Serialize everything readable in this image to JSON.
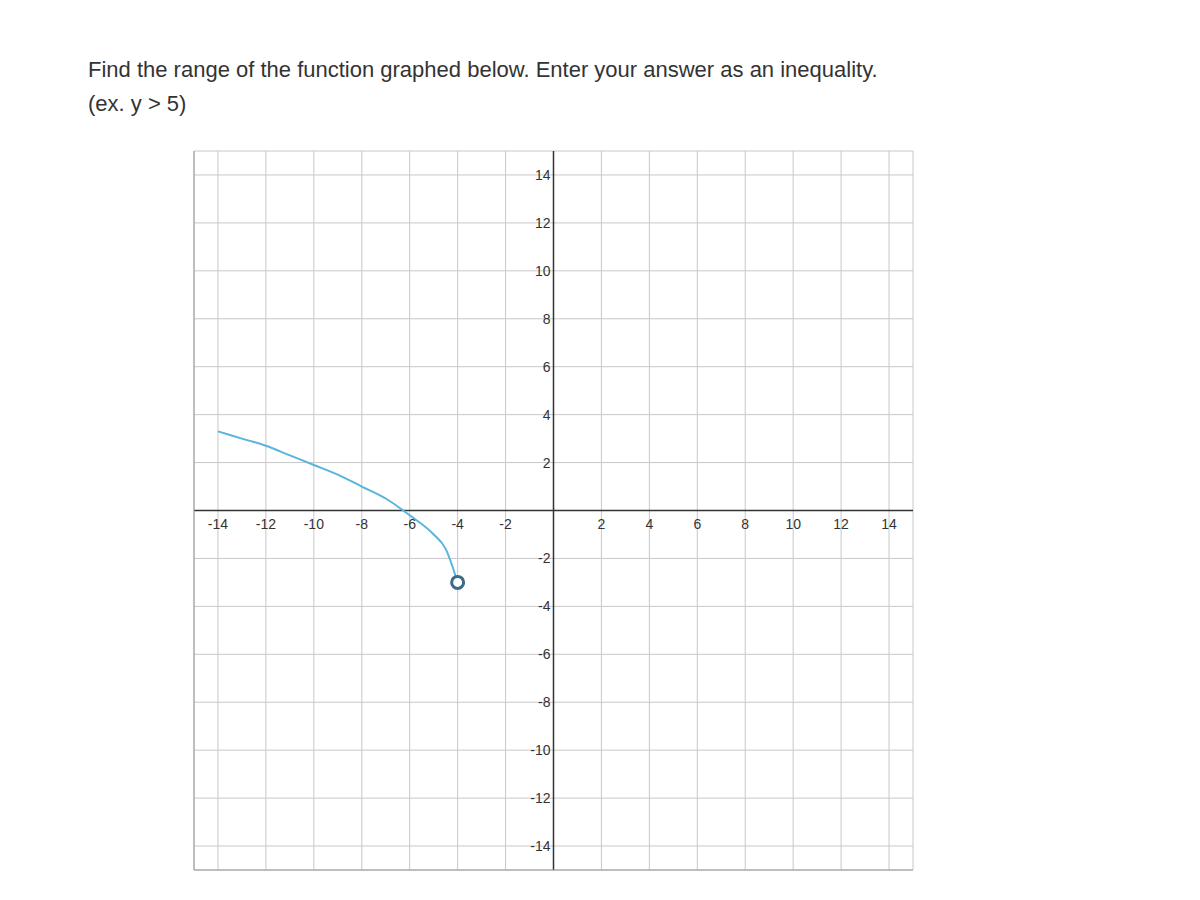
{
  "chart_data": {
    "type": "line",
    "title": "Find the range of the function graphed below. Enter your answer as an inequality. (ex. y > 5)",
    "x": [
      -14,
      -13,
      -12,
      -11,
      -10,
      -9,
      -8,
      -7,
      -6,
      -5,
      -4.5,
      -4
    ],
    "values": [
      3.3,
      3.0,
      2.7,
      2.3,
      1.9,
      1.5,
      1.0,
      0.5,
      -0.2,
      -1.0,
      -1.6,
      -3.0
    ],
    "color": "#5ab4dc",
    "marker": "open_end",
    "xlim": [
      -15,
      15
    ],
    "ylim": [
      -15,
      15
    ],
    "xticks": [
      -14,
      -12,
      -10,
      -8,
      -6,
      -4,
      -2,
      2,
      4,
      6,
      8,
      10,
      12,
      14
    ],
    "yticks": [
      -14,
      -12,
      -10,
      -8,
      -6,
      -4,
      -2,
      2,
      4,
      6,
      8,
      10,
      12,
      14
    ],
    "grid": true
  }
}
